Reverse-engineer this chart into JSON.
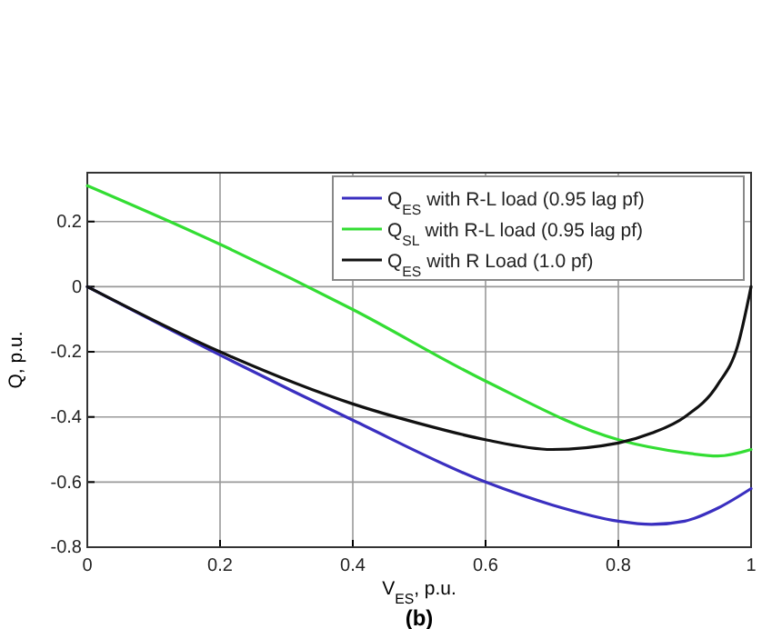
{
  "chart_data": {
    "type": "line",
    "xlabel": "V$_{ES}$, p.u.",
    "ylabel": "Q, p.u.",
    "annotations": [
      "(b)"
    ],
    "xlim": [
      0,
      1
    ],
    "xticks": [
      0,
      0.2,
      0.4,
      0.6,
      0.8,
      1
    ],
    "ylim": [
      -0.8,
      0.35
    ],
    "yticks": [
      -0.8,
      -0.6,
      -0.4,
      -0.2,
      0,
      0.2
    ],
    "grid": true,
    "legend": "top right",
    "line_style": "solid",
    "series": [
      {
        "name": "Q$_{ES}$ with R-L load (0.95 lag pf)",
        "color": "#3a2fc0",
        "x": [
          0,
          0.2,
          0.4,
          0.6,
          0.7,
          0.8,
          0.85,
          0.9,
          0.95,
          1
        ],
        "values": [
          0,
          -0.21,
          -0.41,
          -0.6,
          -0.67,
          -0.72,
          -0.73,
          -0.72,
          -0.68,
          -0.62
        ]
      },
      {
        "name": "Q$_{SL}$ with R-L load (0.95 lag pf)",
        "color": "#33dd33",
        "x": [
          0,
          0.2,
          0.4,
          0.6,
          0.8,
          0.9,
          0.95,
          1
        ],
        "values": [
          0.31,
          0.13,
          -0.07,
          -0.29,
          -0.47,
          -0.51,
          -0.52,
          -0.5
        ]
      },
      {
        "name": "Q$_{ES}$ with R Load (1.0 pf)",
        "color": "#111111",
        "x": [
          0,
          0.2,
          0.4,
          0.5,
          0.6,
          0.7,
          0.8,
          0.85,
          0.9,
          0.95,
          0.98,
          1
        ],
        "values": [
          0,
          -0.2,
          -0.36,
          -0.42,
          -0.47,
          -0.5,
          -0.48,
          -0.45,
          -0.4,
          -0.3,
          -0.18,
          0
        ]
      }
    ]
  }
}
